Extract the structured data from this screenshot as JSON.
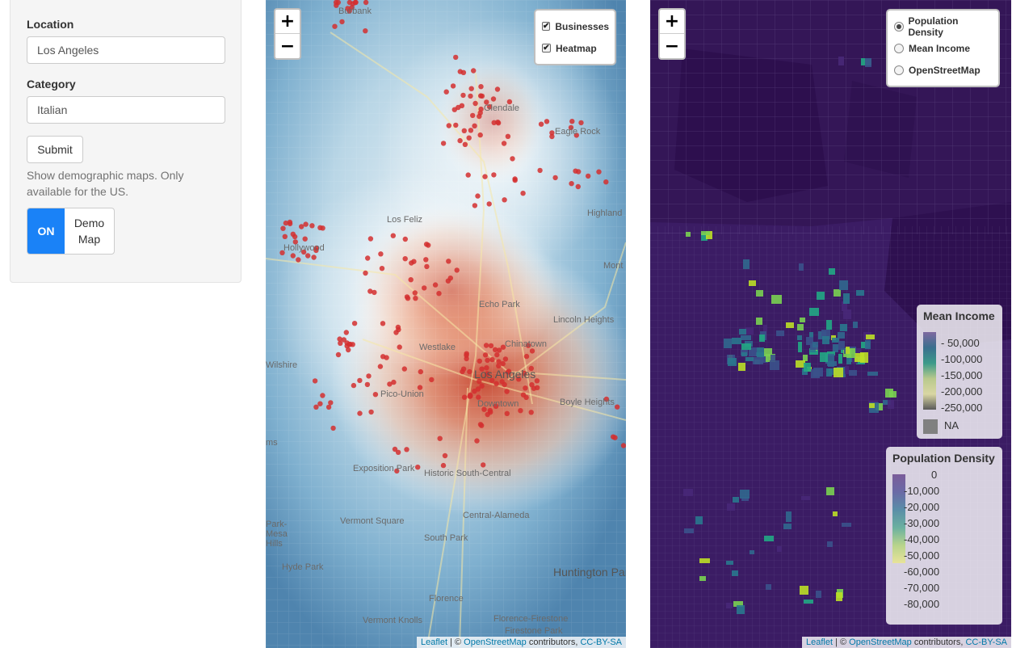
{
  "sidebar": {
    "location_label": "Location",
    "location_value": "Los Angeles",
    "category_label": "Category",
    "category_value": "Italian",
    "submit_label": "Submit",
    "help_text": "Show demographic maps. Only available for the US.",
    "toggle_on": "ON",
    "toggle_off": "Demo Map"
  },
  "map_left": {
    "zoom_in": "+",
    "zoom_out": "−",
    "layers": [
      {
        "label": "Businesses",
        "checked": true
      },
      {
        "label": "Heatmap",
        "checked": true
      }
    ],
    "places": [
      "Burbank",
      "Glendale",
      "Eagle Rock",
      "Los Feliz",
      "Highland",
      "Hollywood",
      "Echo Park",
      "Lincoln Heights",
      "Westlake",
      "Chinatown",
      "Wilshire",
      "Los Angeles",
      "Downtown",
      "Pico-Union",
      "Boyle Heights",
      "Exposition Park",
      "Historic South-Central",
      "Central-Alameda",
      "Vermont Square",
      "South Park",
      "Park-Mesa Hills",
      "Hyde Park",
      "Huntington Park",
      "Florence",
      "Vermont Knolls",
      "Florence-Firestone",
      "Firestone Park",
      "Mont",
      "ms"
    ],
    "attribution": {
      "leaflet": "Leaflet",
      "sep1": " | © ",
      "osm": "OpenStreetMap",
      "mid": " contributors, ",
      "license": "CC-BY-SA"
    }
  },
  "map_right": {
    "zoom_in": "+",
    "zoom_out": "−",
    "layers": [
      {
        "label": "Population Density",
        "selected": true
      },
      {
        "label": "Mean Income",
        "selected": false
      },
      {
        "label": "OpenStreetMap",
        "selected": false
      }
    ],
    "income_legend": {
      "title": "Mean Income",
      "ticks": [
        "50,000",
        "100,000",
        "150,000",
        "200,000",
        "250,000"
      ],
      "na_label": "NA"
    },
    "density_legend": {
      "title": "Population Density",
      "ticks": [
        "0",
        "10,000",
        "20,000",
        "30,000",
        "40,000",
        "50,000",
        "60,000",
        "70,000",
        "80,000"
      ]
    },
    "attribution": {
      "leaflet": "Leaflet",
      "sep1": " | © ",
      "osm": "OpenStreetMap",
      "mid": " contributors, ",
      "license": "CC-BY-SA"
    }
  },
  "colors": {
    "accent": "#1a82f7",
    "marker": "#d32f2f",
    "viridis_low": "#440154",
    "viridis_high": "#fde725"
  }
}
